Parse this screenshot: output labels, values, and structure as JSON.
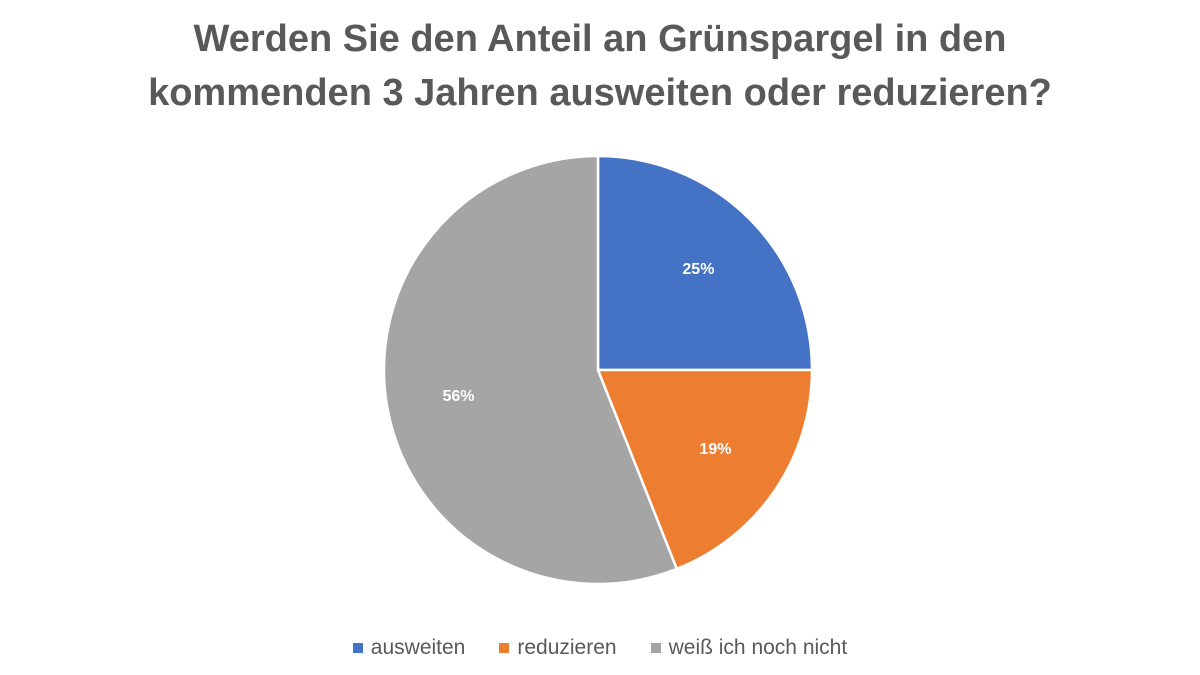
{
  "chart_data": {
    "type": "pie",
    "title_lines": [
      "Werden Sie den Anteil an Grünspargel in den",
      "kommenden 3 Jahren ausweiten oder reduzieren?"
    ],
    "categories": [
      "ausweiten",
      "reduzieren",
      "weiß ich noch nicht"
    ],
    "values": [
      25,
      19,
      56
    ],
    "value_labels": [
      "25%",
      "19%",
      "56%"
    ],
    "colors": [
      "#4472C4",
      "#ED7D31",
      "#A5A5A5"
    ],
    "legend_position": "bottom"
  }
}
